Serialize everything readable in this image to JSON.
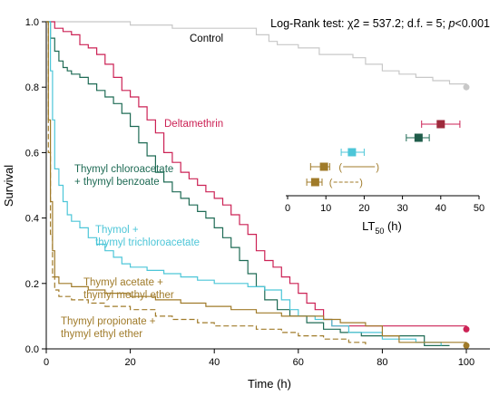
{
  "chart_data": {
    "type": "line",
    "subtype": "kaplan-meier survival curves with inset LT50 point estimates",
    "ylabel": "Survival",
    "xlabel": "Time (h)",
    "xlim": [
      0,
      105
    ],
    "ylim": [
      0,
      1.0
    ],
    "xticks": [
      "0",
      "20",
      "40",
      "60",
      "80",
      "100"
    ],
    "yticks": [
      "0.0",
      "0.2",
      "0.4",
      "0.6",
      "0.8",
      "1.0"
    ],
    "grid": false,
    "annotation": {
      "prefix": "Log-Rank test: ",
      "chi": "χ2",
      "stat": " = 537.2; d.f. = 5; ",
      "p": "p",
      "suffix": "<0.001"
    },
    "series": [
      {
        "name": "Control",
        "label_lines": [
          "Control"
        ],
        "color": "#c8c8c8",
        "dash": false,
        "steps": [
          [
            0,
            1.0
          ],
          [
            20,
            0.99
          ],
          [
            30,
            0.98
          ],
          [
            50,
            0.96
          ],
          [
            53,
            0.94
          ],
          [
            55,
            0.93
          ],
          [
            60,
            0.92
          ],
          [
            65,
            0.9
          ],
          [
            73,
            0.89
          ],
          [
            76,
            0.87
          ],
          [
            80,
            0.85
          ],
          [
            84,
            0.84
          ],
          [
            88,
            0.83
          ],
          [
            92,
            0.82
          ],
          [
            96,
            0.81
          ],
          [
            100,
            0.8
          ]
        ],
        "end_marker": [
          100,
          0.8
        ]
      },
      {
        "name": "Deltamethrin",
        "label_lines": [
          "Deltamethrin"
        ],
        "color": "#cc2255",
        "dash": false,
        "steps": [
          [
            0,
            1.0
          ],
          [
            2,
            0.98
          ],
          [
            4,
            0.97
          ],
          [
            6,
            0.96
          ],
          [
            8,
            0.93
          ],
          [
            10,
            0.92
          ],
          [
            12,
            0.9
          ],
          [
            14,
            0.87
          ],
          [
            16,
            0.83
          ],
          [
            18,
            0.79
          ],
          [
            20,
            0.77
          ],
          [
            22,
            0.74
          ],
          [
            24,
            0.7
          ],
          [
            26,
            0.66
          ],
          [
            28,
            0.6
          ],
          [
            30,
            0.57
          ],
          [
            32,
            0.54
          ],
          [
            34,
            0.52
          ],
          [
            36,
            0.5
          ],
          [
            38,
            0.48
          ],
          [
            40,
            0.46
          ],
          [
            42,
            0.44
          ],
          [
            44,
            0.41
          ],
          [
            46,
            0.38
          ],
          [
            48,
            0.35
          ],
          [
            50,
            0.3
          ],
          [
            52,
            0.27
          ],
          [
            54,
            0.25
          ],
          [
            56,
            0.22
          ],
          [
            58,
            0.2
          ],
          [
            60,
            0.17
          ],
          [
            62,
            0.14
          ],
          [
            64,
            0.12
          ],
          [
            66,
            0.09
          ],
          [
            68,
            0.07
          ],
          [
            100,
            0.06
          ]
        ],
        "end_marker": [
          100,
          0.06
        ]
      },
      {
        "name": "Thymyl chloroacetate + thymyl benzoate",
        "label_lines": [
          "Thymyl chloroacetate",
          "+ thymyl benzoate"
        ],
        "color": "#1f6b55",
        "dash": false,
        "steps": [
          [
            0,
            1.0
          ],
          [
            1,
            0.95
          ],
          [
            2,
            0.91
          ],
          [
            3,
            0.88
          ],
          [
            4,
            0.86
          ],
          [
            5,
            0.85
          ],
          [
            6,
            0.84
          ],
          [
            8,
            0.83
          ],
          [
            10,
            0.81
          ],
          [
            12,
            0.79
          ],
          [
            14,
            0.77
          ],
          [
            16,
            0.75
          ],
          [
            18,
            0.72
          ],
          [
            20,
            0.68
          ],
          [
            22,
            0.63
          ],
          [
            24,
            0.59
          ],
          [
            26,
            0.54
          ],
          [
            28,
            0.51
          ],
          [
            30,
            0.48
          ],
          [
            32,
            0.46
          ],
          [
            34,
            0.44
          ],
          [
            36,
            0.42
          ],
          [
            38,
            0.4
          ],
          [
            40,
            0.37
          ],
          [
            42,
            0.34
          ],
          [
            44,
            0.31
          ],
          [
            46,
            0.27
          ],
          [
            48,
            0.23
          ],
          [
            50,
            0.19
          ],
          [
            52,
            0.15
          ],
          [
            55,
            0.12
          ],
          [
            58,
            0.1
          ],
          [
            62,
            0.08
          ],
          [
            66,
            0.06
          ],
          [
            70,
            0.05
          ],
          [
            75,
            0.04
          ],
          [
            90,
            0.01
          ],
          [
            96,
            0.01
          ]
        ],
        "end_marker": null
      },
      {
        "name": "Thymol + thymyl trichloroacetate",
        "label_lines": [
          "Thymol +",
          "thymyl trichloroacetate"
        ],
        "color": "#4dc6d8",
        "dash": false,
        "steps": [
          [
            0,
            1.0
          ],
          [
            1,
            0.85
          ],
          [
            1.5,
            0.7
          ],
          [
            2,
            0.55
          ],
          [
            3,
            0.5
          ],
          [
            4,
            0.45
          ],
          [
            5,
            0.41
          ],
          [
            6,
            0.39
          ],
          [
            8,
            0.37
          ],
          [
            10,
            0.34
          ],
          [
            12,
            0.32
          ],
          [
            14,
            0.3
          ],
          [
            16,
            0.28
          ],
          [
            18,
            0.26
          ],
          [
            20,
            0.25
          ],
          [
            24,
            0.24
          ],
          [
            28,
            0.23
          ],
          [
            32,
            0.22
          ],
          [
            36,
            0.21
          ],
          [
            40,
            0.2
          ],
          [
            44,
            0.2
          ],
          [
            48,
            0.19
          ],
          [
            52,
            0.18
          ],
          [
            56,
            0.15
          ],
          [
            58,
            0.12
          ],
          [
            60,
            0.1
          ],
          [
            64,
            0.09
          ],
          [
            68,
            0.07
          ],
          [
            72,
            0.05
          ],
          [
            80,
            0.03
          ],
          [
            88,
            0.02
          ],
          [
            94,
            0.01
          ]
        ],
        "end_marker": null
      },
      {
        "name": "Thymyl acetate + thymyl methyl ether",
        "label_lines": [
          "Thymyl acetate +",
          "thymyl methyl ether"
        ],
        "color": "#a07b2a",
        "dash": false,
        "steps": [
          [
            0,
            1.0
          ],
          [
            0.5,
            0.7
          ],
          [
            1,
            0.45
          ],
          [
            1.5,
            0.3
          ],
          [
            2,
            0.22
          ],
          [
            3,
            0.2
          ],
          [
            6,
            0.19
          ],
          [
            10,
            0.18
          ],
          [
            14,
            0.17
          ],
          [
            20,
            0.16
          ],
          [
            26,
            0.15
          ],
          [
            32,
            0.14
          ],
          [
            38,
            0.13
          ],
          [
            44,
            0.12
          ],
          [
            50,
            0.11
          ],
          [
            56,
            0.1
          ],
          [
            66,
            0.09
          ],
          [
            70,
            0.08
          ],
          [
            76,
            0.07
          ],
          [
            80,
            0.04
          ],
          [
            84,
            0.02
          ],
          [
            100,
            0.01
          ]
        ],
        "end_marker": [
          100,
          0.01
        ]
      },
      {
        "name": "Thymyl propionate + thymyl ethyl ether",
        "label_lines": [
          "Thymyl propionate +",
          "thymyl ethyl ether"
        ],
        "color": "#a07b2a",
        "dash": true,
        "steps": [
          [
            0,
            1.0
          ],
          [
            0.5,
            0.6
          ],
          [
            1,
            0.35
          ],
          [
            1.5,
            0.22
          ],
          [
            2,
            0.18
          ],
          [
            3,
            0.16
          ],
          [
            6,
            0.15
          ],
          [
            10,
            0.14
          ],
          [
            14,
            0.13
          ],
          [
            20,
            0.12
          ],
          [
            26,
            0.1
          ],
          [
            30,
            0.09
          ],
          [
            36,
            0.08
          ],
          [
            40,
            0.07
          ],
          [
            50,
            0.06
          ],
          [
            56,
            0.05
          ],
          [
            60,
            0.04
          ],
          [
            66,
            0.03
          ],
          [
            72,
            0.02
          ],
          [
            76,
            0.01
          ]
        ],
        "end_marker": null
      }
    ],
    "inset": {
      "xlabel": "LT",
      "xlabel_sub": "50",
      "xlabel_unit": " (h)",
      "xlim": [
        0,
        50
      ],
      "xticks": [
        "0",
        "10",
        "20",
        "30",
        "40",
        "50"
      ],
      "points": [
        {
          "name": "Deltamethrin",
          "value": 40.0,
          "ci": [
            35,
            45
          ],
          "color": "#cc2255",
          "fill": "#9e2a3c",
          "dash": false
        },
        {
          "name": "Thymyl chloroacetate + thymyl benzoate",
          "value": 34.2,
          "ci": [
            31,
            37
          ],
          "color": "#1f6b55",
          "fill": "#1f5c4a",
          "dash": false
        },
        {
          "name": "Thymol + thymyl trichloroacetate",
          "value": 16.8,
          "ci": [
            14,
            20
          ],
          "color": "#4dc6d8",
          "fill": "#4dc6d8",
          "dash": false
        },
        {
          "name": "Thymyl acetate + thymyl methyl ether",
          "value": 9.5,
          "ci": [
            6,
            11
          ],
          "color": "#a07b2a",
          "fill": "#a07b2a",
          "dash": false,
          "paren": [
            14.5,
            22.8
          ]
        },
        {
          "name": "Thymyl propionate + thymyl ethyl ether",
          "value": 7.2,
          "ci": [
            5,
            9
          ],
          "color": "#a07b2a",
          "fill": "#a07b2a",
          "dash": false,
          "paren": [
            12.0,
            18.5
          ]
        }
      ]
    }
  }
}
